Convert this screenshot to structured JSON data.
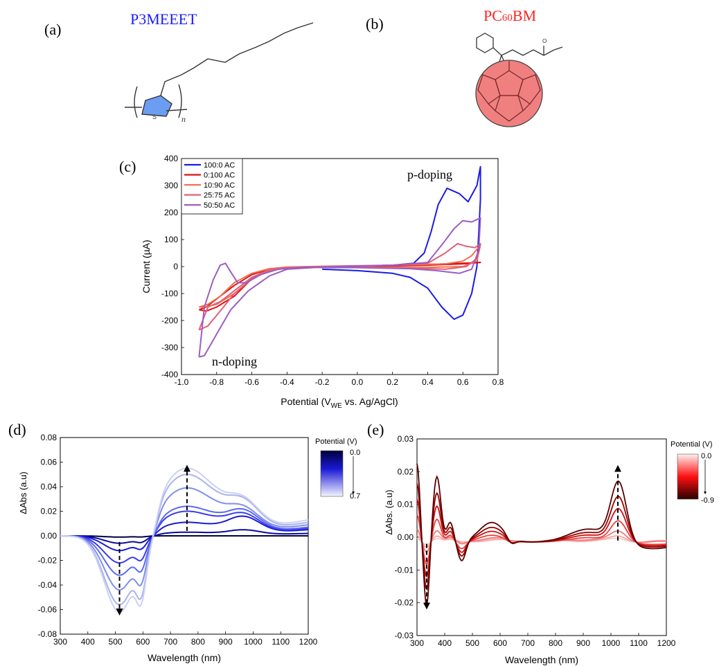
{
  "panels": {
    "a": {
      "label": "(a)",
      "title": "P3MEEET",
      "title_color": "#1a1aff",
      "ring_atom": "S",
      "repeat_subscript": "n",
      "ring_fill": "#6b9df2"
    },
    "b": {
      "label": "(b)",
      "title_prefix": "PC",
      "title_sub": "60",
      "title_suffix": "BM",
      "title_color": "#ff2222",
      "ball_fill": "#f08080"
    }
  },
  "chart_data": [
    {
      "panel_label": "(c)",
      "type": "line",
      "xlabel": "Potential (V",
      "xlabel_sub": "WE",
      "xlabel_tail": " vs. Ag/AgCl)",
      "ylabel": "Current (µA)",
      "xlim": [
        -1.0,
        0.8
      ],
      "ylim": [
        -400,
        400
      ],
      "xticks": [
        -1.0,
        -0.8,
        -0.6,
        -0.4,
        -0.2,
        0.0,
        0.2,
        0.4,
        0.6,
        0.8
      ],
      "xtick_labels": [
        "-1.0",
        "-0.8",
        "-0.6",
        "-0.4",
        "-0.2",
        "0.0",
        "0.2",
        "0.4",
        "0.6",
        "0.8"
      ],
      "yticks": [
        -400,
        -300,
        -200,
        -100,
        0,
        100,
        200,
        300,
        400
      ],
      "ytick_labels": [
        "-400",
        "-300",
        "-200",
        "-100",
        "0",
        "100",
        "200",
        "300",
        "400"
      ],
      "annotations": [
        {
          "text": "p-doping",
          "x": 0.54,
          "y": 330
        },
        {
          "text": "n-doping",
          "x": -0.68,
          "y": -345
        }
      ],
      "legend_position": "top-left",
      "series": [
        {
          "name": "100:0 AC",
          "color": "#1a1ae6",
          "points": [
            [
              -0.2,
              -10
            ],
            [
              0.0,
              -15
            ],
            [
              0.2,
              -25
            ],
            [
              0.3,
              -40
            ],
            [
              0.4,
              -80
            ],
            [
              0.48,
              -150
            ],
            [
              0.55,
              -195
            ],
            [
              0.6,
              -180
            ],
            [
              0.65,
              -100
            ],
            [
              0.68,
              0
            ],
            [
              0.69,
              120
            ],
            [
              0.7,
              250
            ],
            [
              0.7,
              370
            ],
            [
              0.68,
              300
            ],
            [
              0.63,
              240
            ],
            [
              0.58,
              270
            ],
            [
              0.51,
              290
            ],
            [
              0.46,
              230
            ],
            [
              0.42,
              130
            ],
            [
              0.38,
              50
            ],
            [
              0.32,
              12
            ],
            [
              0.2,
              5
            ],
            [
              0.0,
              2
            ],
            [
              -0.2,
              0
            ]
          ]
        },
        {
          "name": "0:100 AC",
          "color": "#e01010",
          "points": [
            [
              -0.9,
              -160
            ],
            [
              -0.86,
              -150
            ],
            [
              -0.8,
              -120
            ],
            [
              -0.7,
              -70
            ],
            [
              -0.6,
              -30
            ],
            [
              -0.5,
              -10
            ],
            [
              -0.4,
              -3
            ],
            [
              -0.2,
              0
            ],
            [
              0.0,
              2
            ],
            [
              0.2,
              5
            ],
            [
              0.4,
              8
            ],
            [
              0.6,
              12
            ],
            [
              0.7,
              15
            ],
            [
              0.6,
              10
            ],
            [
              0.4,
              5
            ],
            [
              0.2,
              2
            ],
            [
              0.0,
              0
            ],
            [
              -0.2,
              -2
            ],
            [
              -0.4,
              -5
            ],
            [
              -0.5,
              -15
            ],
            [
              -0.6,
              -45
            ],
            [
              -0.7,
              -110
            ],
            [
              -0.8,
              -150
            ],
            [
              -0.86,
              -165
            ],
            [
              -0.9,
              -160
            ]
          ]
        },
        {
          "name": "10:90 AC",
          "color": "#f07050",
          "points": [
            [
              -0.9,
              -150
            ],
            [
              -0.85,
              -140
            ],
            [
              -0.78,
              -110
            ],
            [
              -0.7,
              -60
            ],
            [
              -0.6,
              -25
            ],
            [
              -0.5,
              -8
            ],
            [
              -0.4,
              -2
            ],
            [
              -0.2,
              1
            ],
            [
              0.0,
              3
            ],
            [
              0.2,
              5
            ],
            [
              0.4,
              8
            ],
            [
              0.5,
              10
            ],
            [
              0.6,
              20
            ],
            [
              0.65,
              40
            ],
            [
              0.7,
              80
            ],
            [
              0.68,
              20
            ],
            [
              0.6,
              0
            ],
            [
              0.4,
              -3
            ],
            [
              0.2,
              -3
            ],
            [
              0.0,
              -2
            ],
            [
              -0.2,
              -2
            ],
            [
              -0.4,
              -5
            ],
            [
              -0.5,
              -15
            ],
            [
              -0.6,
              -45
            ],
            [
              -0.7,
              -100
            ],
            [
              -0.8,
              -140
            ],
            [
              -0.87,
              -150
            ],
            [
              -0.9,
              -150
            ]
          ]
        },
        {
          "name": "25:75 AC",
          "color": "#e0607a",
          "points": [
            [
              -0.9,
              -235
            ],
            [
              -0.85,
              -220
            ],
            [
              -0.78,
              -165
            ],
            [
              -0.7,
              -100
            ],
            [
              -0.6,
              -45
            ],
            [
              -0.5,
              -15
            ],
            [
              -0.4,
              -4
            ],
            [
              -0.2,
              0
            ],
            [
              0.0,
              2
            ],
            [
              0.2,
              5
            ],
            [
              0.4,
              12
            ],
            [
              0.5,
              50
            ],
            [
              0.57,
              85
            ],
            [
              0.62,
              75
            ],
            [
              0.67,
              70
            ],
            [
              0.7,
              85
            ],
            [
              0.68,
              30
            ],
            [
              0.62,
              0
            ],
            [
              0.5,
              -10
            ],
            [
              0.4,
              -8
            ],
            [
              0.2,
              -5
            ],
            [
              0.0,
              -3
            ],
            [
              -0.2,
              -2
            ],
            [
              -0.4,
              -4
            ],
            [
              -0.5,
              -12
            ],
            [
              -0.6,
              -40
            ],
            [
              -0.7,
              -90
            ],
            [
              -0.78,
              -130
            ],
            [
              -0.85,
              -150
            ],
            [
              -0.9,
              -235
            ]
          ]
        },
        {
          "name": "50:50 AC",
          "color": "#9b5cc4",
          "points": [
            [
              -0.9,
              -335
            ],
            [
              -0.87,
              -330
            ],
            [
              -0.8,
              -250
            ],
            [
              -0.72,
              -160
            ],
            [
              -0.62,
              -90
            ],
            [
              -0.5,
              -35
            ],
            [
              -0.4,
              -10
            ],
            [
              -0.2,
              -2
            ],
            [
              0.0,
              2
            ],
            [
              0.2,
              5
            ],
            [
              0.4,
              15
            ],
            [
              0.48,
              80
            ],
            [
              0.55,
              140
            ],
            [
              0.6,
              170
            ],
            [
              0.65,
              165
            ],
            [
              0.7,
              180
            ],
            [
              0.69,
              60
            ],
            [
              0.65,
              -10
            ],
            [
              0.58,
              -25
            ],
            [
              0.45,
              -15
            ],
            [
              0.3,
              -8
            ],
            [
              0.0,
              -4
            ],
            [
              -0.3,
              -3
            ],
            [
              -0.45,
              -10
            ],
            [
              -0.55,
              -30
            ],
            [
              -0.63,
              -60
            ],
            [
              -0.68,
              -60
            ],
            [
              -0.72,
              -20
            ],
            [
              -0.75,
              12
            ],
            [
              -0.78,
              5
            ],
            [
              -0.82,
              -50
            ],
            [
              -0.87,
              -150
            ],
            [
              -0.9,
              -335
            ]
          ]
        }
      ]
    },
    {
      "panel_label": "(d)",
      "type": "line",
      "xlabel": "Wavelength (nm)",
      "ylabel": "ΔAbs (a.u)",
      "xlim": [
        300,
        1200
      ],
      "ylim": [
        -0.08,
        0.08
      ],
      "xticks": [
        300,
        400,
        500,
        600,
        700,
        800,
        900,
        1000,
        1100,
        1200
      ],
      "xtick_labels": [
        "300",
        "400",
        "500",
        "600",
        "700",
        "800",
        "900",
        "1000",
        "1100",
        "1200"
      ],
      "yticks": [
        -0.08,
        -0.06,
        -0.04,
        -0.02,
        0.0,
        0.02,
        0.04,
        0.06,
        0.08
      ],
      "ytick_labels": [
        "-0.08",
        "-0.06",
        "-0.04",
        "-0.02",
        "0.00",
        "0.02",
        "0.04",
        "0.06",
        "0.08"
      ],
      "colorbar": {
        "title": "Potential (V)",
        "top": "0.0",
        "bottom": "0.7",
        "colors": [
          "#000040",
          "#1a1aff",
          "#ffffff"
        ]
      },
      "arrows": [
        {
          "x": 515,
          "from": -0.005,
          "to": -0.062
        },
        {
          "x": 760,
          "from": 0.004,
          "to": 0.055
        }
      ],
      "series": [
        {
          "color": "#00003a",
          "trough": -0.001,
          "peak": 0.0,
          "peak2": 0.0,
          "tail": 0.0
        },
        {
          "color": "#0a0a9a",
          "trough": -0.006,
          "peak": 0.003,
          "peak2": 0.004,
          "tail": 0.002
        },
        {
          "color": "#1a1ad6",
          "trough": -0.012,
          "peak": 0.011,
          "peak2": 0.013,
          "tail": 0.005
        },
        {
          "color": "#3a3af0",
          "trough": -0.022,
          "peak": 0.02,
          "peak2": 0.014,
          "tail": 0.006
        },
        {
          "color": "#5a6aee",
          "trough": -0.032,
          "peak": 0.024,
          "peak2": 0.016,
          "tail": 0.007
        },
        {
          "color": "#7f8eea",
          "trough": -0.044,
          "peak": 0.039,
          "peak2": 0.016,
          "tail": 0.009
        },
        {
          "color": "#aab2ee",
          "trough": -0.056,
          "peak": 0.05,
          "peak2": 0.02,
          "tail": 0.011
        },
        {
          "color": "#cbd0f5",
          "trough": -0.062,
          "peak": 0.055,
          "peak2": 0.02,
          "tail": 0.013
        }
      ]
    },
    {
      "panel_label": "(e)",
      "type": "line",
      "xlabel": "Wavelength (nm)",
      "ylabel": "ΔAbs. (a.u)",
      "xlim": [
        300,
        1200
      ],
      "ylim": [
        -0.03,
        0.03
      ],
      "xticks": [
        300,
        400,
        500,
        600,
        700,
        800,
        900,
        1000,
        1100,
        1200
      ],
      "xtick_labels": [
        "300",
        "400",
        "500",
        "600",
        "700",
        "800",
        "900",
        "1000",
        "1100",
        "1200"
      ],
      "yticks": [
        -0.03,
        -0.02,
        -0.01,
        0.0,
        0.01,
        0.02,
        0.03
      ],
      "ytick_labels": [
        "-0.03",
        "-0.02",
        "-0.01",
        "0.00",
        "0.01",
        "0.02",
        "0.03"
      ],
      "colorbar": {
        "title": "Potential (V)",
        "top": "0.0",
        "bottom": "-0.9",
        "colors": [
          "#ffe8e8",
          "#ff0000",
          "#3a0000"
        ]
      },
      "arrows": [
        {
          "x": 335,
          "from": -0.002,
          "to": -0.021
        },
        {
          "x": 1025,
          "from": -0.001,
          "to": 0.021
        }
      ],
      "series": [
        {
          "color": "#f6c8c8",
          "scale": 0.05
        },
        {
          "color": "#f4a8a8",
          "scale": 0.1
        },
        {
          "color": "#f07878",
          "scale": 0.2
        },
        {
          "color": "#e84040",
          "scale": 0.35
        },
        {
          "color": "#c81010",
          "scale": 0.55
        },
        {
          "color": "#9a0000",
          "scale": 0.75
        },
        {
          "color": "#5a0000",
          "scale": 1.0
        }
      ]
    }
  ]
}
